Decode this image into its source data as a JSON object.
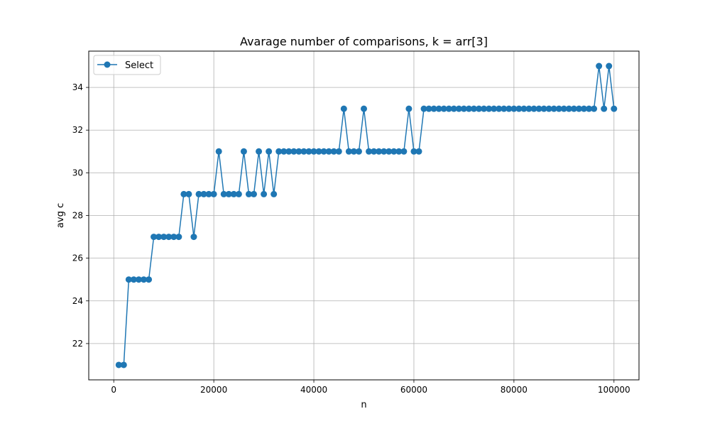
{
  "chart_data": {
    "type": "line",
    "title": "Avarage number of comparisons, k = arr[3]",
    "xlabel": "n",
    "ylabel": "avg c",
    "xlim": [
      -5000,
      105000
    ],
    "ylim": [
      20.3,
      35.7
    ],
    "x_ticks": [
      0,
      20000,
      40000,
      60000,
      80000,
      100000
    ],
    "x_tick_labels": [
      "0",
      "20000",
      "40000",
      "60000",
      "80000",
      "100000"
    ],
    "y_ticks": [
      22,
      24,
      26,
      28,
      30,
      32,
      34
    ],
    "y_tick_labels": [
      "22",
      "24",
      "26",
      "28",
      "30",
      "32",
      "34"
    ],
    "grid": true,
    "legend_position": "top-left",
    "color": "#1f77b4",
    "series": [
      {
        "name": "Select",
        "x": [
          1000,
          2000,
          3000,
          4000,
          5000,
          6000,
          7000,
          8000,
          9000,
          10000,
          11000,
          12000,
          13000,
          14000,
          15000,
          16000,
          17000,
          18000,
          19000,
          20000,
          21000,
          22000,
          23000,
          24000,
          25000,
          26000,
          27000,
          28000,
          29000,
          30000,
          31000,
          32000,
          33000,
          34000,
          35000,
          36000,
          37000,
          38000,
          39000,
          40000,
          41000,
          42000,
          43000,
          44000,
          45000,
          46000,
          47000,
          48000,
          49000,
          50000,
          51000,
          52000,
          53000,
          54000,
          55000,
          56000,
          57000,
          58000,
          59000,
          60000,
          61000,
          62000,
          63000,
          64000,
          65000,
          66000,
          67000,
          68000,
          69000,
          70000,
          71000,
          72000,
          73000,
          74000,
          75000,
          76000,
          77000,
          78000,
          79000,
          80000,
          81000,
          82000,
          83000,
          84000,
          85000,
          86000,
          87000,
          88000,
          89000,
          90000,
          91000,
          92000,
          93000,
          94000,
          95000,
          96000,
          97000,
          98000,
          99000,
          100000
        ],
        "y": [
          21,
          21,
          25,
          25,
          25,
          25,
          25,
          27,
          27,
          27,
          27,
          27,
          27,
          29,
          29,
          27,
          29,
          29,
          29,
          29,
          31,
          29,
          29,
          29,
          29,
          31,
          29,
          29,
          31,
          29,
          31,
          29,
          31,
          31,
          31,
          31,
          31,
          31,
          31,
          31,
          31,
          31,
          31,
          31,
          31,
          33,
          31,
          31,
          31,
          33,
          31,
          31,
          31,
          31,
          31,
          31,
          31,
          31,
          33,
          31,
          31,
          33,
          33,
          33,
          33,
          33,
          33,
          33,
          33,
          33,
          33,
          33,
          33,
          33,
          33,
          33,
          33,
          33,
          33,
          33,
          33,
          33,
          33,
          33,
          33,
          33,
          33,
          33,
          33,
          33,
          33,
          33,
          33,
          33,
          33,
          33,
          35,
          33,
          35,
          33
        ]
      }
    ]
  }
}
